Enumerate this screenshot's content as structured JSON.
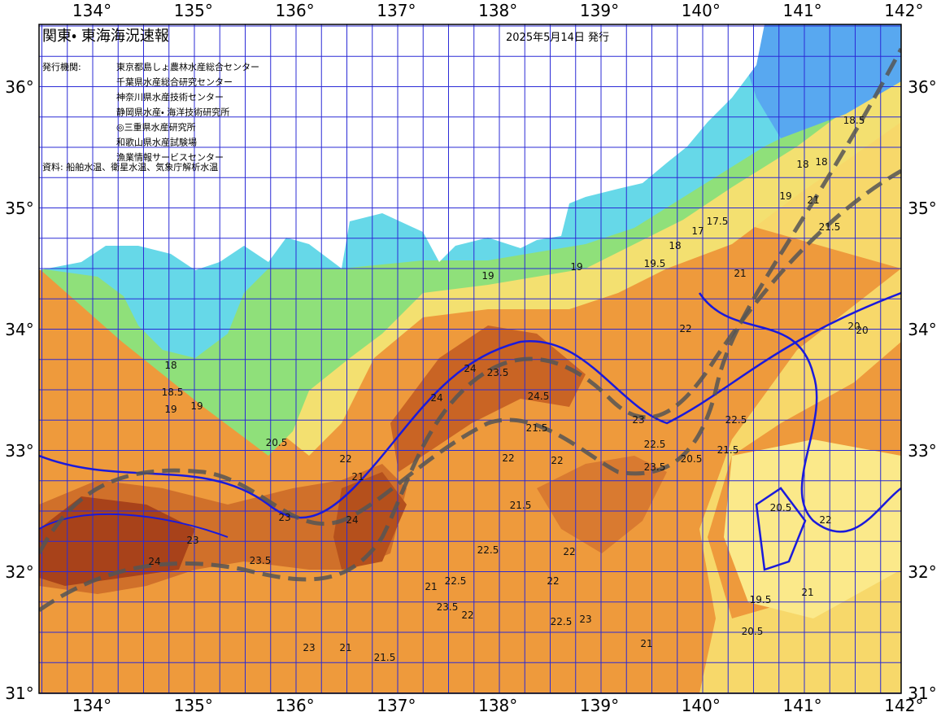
{
  "header": {
    "title": "関東・ 東海海況速報",
    "date": "2025年5月14日 発行",
    "issuer_label": "発行機関:",
    "issuers": [
      "東京都島しょ農林水産総合センター",
      "千葉県水産総合研究センター",
      "神奈川県水産技術センター",
      "静岡県水産・ 海洋技術研究所",
      "◎三重県水産研究所",
      "和歌山県水産試験場",
      "漁業情報サービスセンター"
    ],
    "source": "資料: 船舶水温、衛星水温、気象庁解析水温"
  },
  "axes": {
    "longitude_top": [
      "134°",
      "135°",
      "136°",
      "137°",
      "138°",
      "139°",
      "140°",
      "141°",
      "142°"
    ],
    "longitude_bottom": [
      "134°",
      "135°",
      "136°",
      "137°",
      "138°",
      "139°",
      "140°",
      "141°",
      "142°"
    ],
    "latitude_left": [
      "36°",
      "35°",
      "34°",
      "33°",
      "32°",
      "31°"
    ],
    "latitude_right": [
      "36°",
      "35°",
      "34°",
      "33°",
      "32°",
      "31°"
    ]
  },
  "contour_labels": [
    "19",
    "19",
    "18",
    "17",
    "17.5",
    "18",
    "19.5",
    "19",
    "18.5",
    "18",
    "19",
    "21",
    "21.5",
    "20",
    "21",
    "22",
    "24",
    "24",
    "23.5",
    "24.5",
    "22",
    "21.5",
    "23",
    "22.5",
    "23.5",
    "24",
    "22",
    "21.5",
    "22",
    "22",
    "21",
    "23",
    "24",
    "23.5",
    "23",
    "22.5",
    "21.5",
    "21",
    "22",
    "22.5",
    "20.5",
    "21",
    "22",
    "20.5",
    "20",
    "19.5",
    "18",
    "18.5",
    "19",
    "20.5",
    "21",
    "22.5",
    "23",
    "23.5",
    "23",
    "22",
    "21.5",
    "22.5",
    "20.5",
    "21"
  ]
}
